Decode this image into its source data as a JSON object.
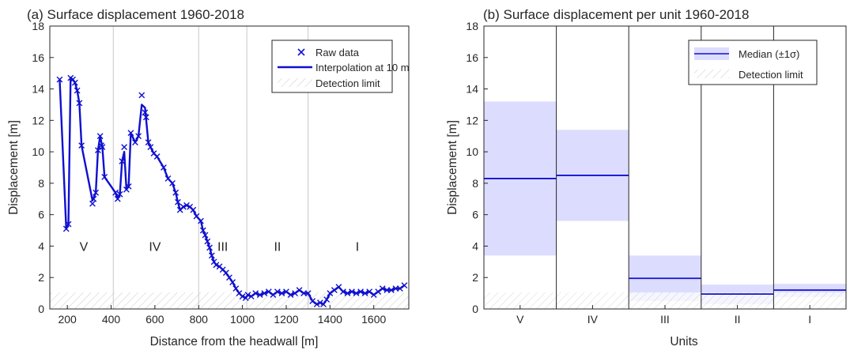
{
  "charts": {
    "a": {
      "chart_data": {
        "type": "line",
        "title": "(a) Surface displacement 1960-2018",
        "xlabel": "Distance from the headwall [m]",
        "ylabel": "Displacement [m]",
        "xlim": [
          120,
          1760
        ],
        "ylim": [
          0,
          18
        ],
        "xticks": [
          200,
          400,
          600,
          800,
          1000,
          1200,
          1400,
          1600
        ],
        "yticks": [
          0,
          2,
          4,
          6,
          8,
          10,
          12,
          14,
          16,
          18
        ],
        "unit_boundaries": [
          410,
          800,
          1020,
          1300
        ],
        "detection_limit": 1.05,
        "units": [
          {
            "label": "V",
            "x": 275,
            "y": 4
          },
          {
            "label": "IV",
            "x": 600,
            "y": 4
          },
          {
            "label": "III",
            "x": 910,
            "y": 4
          },
          {
            "label": "II",
            "x": 1160,
            "y": 4
          },
          {
            "label": "I",
            "x": 1525,
            "y": 4
          }
        ],
        "legend": {
          "position": "top-right",
          "entries": [
            "Raw data",
            "Interpolation at 10 m",
            "Detection limit"
          ]
        },
        "series": [
          {
            "name": "Raw data",
            "marker": "x",
            "points": [
              [
                165,
                14.6
              ],
              [
                195,
                5.1
              ],
              [
                205,
                5.4
              ],
              [
                215,
                14.7
              ],
              [
                225,
                14.6
              ],
              [
                235,
                14.4
              ],
              [
                245,
                13.9
              ],
              [
                255,
                13.1
              ],
              [
                265,
                10.4
              ],
              [
                315,
                6.7
              ],
              [
                320,
                7.0
              ],
              [
                330,
                7.4
              ],
              [
                340,
                10.1
              ],
              [
                350,
                11.0
              ],
              [
                355,
                10.4
              ],
              [
                360,
                10.3
              ],
              [
                370,
                8.4
              ],
              [
                420,
                7.4
              ],
              [
                430,
                7.0
              ],
              [
                440,
                7.3
              ],
              [
                450,
                9.4
              ],
              [
                460,
                10.3
              ],
              [
                470,
                7.6
              ],
              [
                480,
                7.8
              ],
              [
                490,
                11.2
              ],
              [
                510,
                10.6
              ],
              [
                525,
                11.0
              ],
              [
                540,
                13.6
              ],
              [
                555,
                12.5
              ],
              [
                560,
                12.2
              ],
              [
                570,
                10.6
              ],
              [
                580,
                10.3
              ],
              [
                595,
                9.9
              ],
              [
                610,
                9.7
              ],
              [
                640,
                9.0
              ],
              [
                660,
                8.3
              ],
              [
                680,
                8.0
              ],
              [
                695,
                7.4
              ],
              [
                705,
                6.8
              ],
              [
                715,
                6.3
              ],
              [
                730,
                6.5
              ],
              [
                745,
                6.6
              ],
              [
                760,
                6.5
              ],
              [
                775,
                6.3
              ],
              [
                790,
                5.9
              ],
              [
                810,
                5.6
              ],
              [
                820,
                5.0
              ],
              [
                830,
                4.7
              ],
              [
                840,
                4.3
              ],
              [
                850,
                3.9
              ],
              [
                860,
                3.4
              ],
              [
                870,
                3.0
              ],
              [
                880,
                2.8
              ],
              [
                895,
                2.7
              ],
              [
                910,
                2.5
              ],
              [
                925,
                2.3
              ],
              [
                940,
                2.0
              ],
              [
                955,
                1.7
              ],
              [
                970,
                1.3
              ],
              [
                985,
                1.0
              ],
              [
                1000,
                0.8
              ],
              [
                1015,
                0.7
              ],
              [
                1025,
                0.9
              ],
              [
                1040,
                0.8
              ],
              [
                1060,
                1.0
              ],
              [
                1080,
                0.9
              ],
              [
                1100,
                1.0
              ],
              [
                1120,
                1.1
              ],
              [
                1140,
                0.9
              ],
              [
                1160,
                1.1
              ],
              [
                1180,
                1.0
              ],
              [
                1200,
                1.1
              ],
              [
                1220,
                0.9
              ],
              [
                1240,
                1.0
              ],
              [
                1260,
                1.2
              ],
              [
                1280,
                1.0
              ],
              [
                1300,
                1.0
              ],
              [
                1320,
                0.5
              ],
              [
                1340,
                0.3
              ],
              [
                1355,
                0.4
              ],
              [
                1370,
                0.3
              ],
              [
                1385,
                0.6
              ],
              [
                1400,
                1.0
              ],
              [
                1420,
                1.2
              ],
              [
                1440,
                1.4
              ],
              [
                1460,
                1.1
              ],
              [
                1480,
                1.0
              ],
              [
                1500,
                1.1
              ],
              [
                1520,
                1.0
              ],
              [
                1540,
                1.1
              ],
              [
                1560,
                1.0
              ],
              [
                1580,
                1.1
              ],
              [
                1600,
                0.9
              ],
              [
                1620,
                1.1
              ],
              [
                1640,
                1.3
              ],
              [
                1660,
                1.2
              ],
              [
                1680,
                1.2
              ],
              [
                1700,
                1.3
              ],
              [
                1720,
                1.3
              ],
              [
                1740,
                1.5
              ]
            ]
          },
          {
            "name": "Interpolation at 10 m",
            "marker": "line",
            "points": [
              [
                165,
                14.6
              ],
              [
                195,
                5.1
              ],
              [
                205,
                5.4
              ],
              [
                215,
                14.7
              ],
              [
                225,
                14.6
              ],
              [
                235,
                14.4
              ],
              [
                245,
                13.9
              ],
              [
                255,
                13.1
              ],
              [
                265,
                10.4
              ],
              [
                315,
                6.9
              ],
              [
                330,
                7.4
              ],
              [
                340,
                10.1
              ],
              [
                350,
                11.0
              ],
              [
                360,
                10.3
              ],
              [
                370,
                8.4
              ],
              [
                420,
                7.4
              ],
              [
                430,
                7.0
              ],
              [
                440,
                7.3
              ],
              [
                450,
                9.4
              ],
              [
                460,
                10.0
              ],
              [
                470,
                7.6
              ],
              [
                480,
                7.8
              ],
              [
                490,
                11.2
              ],
              [
                510,
                10.6
              ],
              [
                525,
                11.0
              ],
              [
                540,
                13.0
              ],
              [
                555,
                12.8
              ],
              [
                570,
                10.6
              ],
              [
                580,
                10.3
              ],
              [
                595,
                9.9
              ],
              [
                610,
                9.7
              ],
              [
                640,
                9.0
              ],
              [
                660,
                8.3
              ],
              [
                680,
                8.0
              ],
              [
                695,
                7.4
              ],
              [
                705,
                6.8
              ],
              [
                715,
                6.3
              ],
              [
                730,
                6.5
              ],
              [
                745,
                6.6
              ],
              [
                760,
                6.5
              ],
              [
                775,
                6.3
              ],
              [
                790,
                5.9
              ],
              [
                810,
                5.6
              ],
              [
                820,
                5.0
              ],
              [
                830,
                4.7
              ],
              [
                840,
                4.3
              ],
              [
                850,
                3.9
              ],
              [
                860,
                3.4
              ],
              [
                870,
                3.0
              ],
              [
                880,
                2.8
              ],
              [
                895,
                2.7
              ],
              [
                910,
                2.5
              ],
              [
                925,
                2.3
              ],
              [
                940,
                2.0
              ],
              [
                955,
                1.7
              ],
              [
                970,
                1.3
              ],
              [
                985,
                1.0
              ],
              [
                1000,
                0.8
              ],
              [
                1015,
                0.7
              ],
              [
                1025,
                0.9
              ],
              [
                1040,
                0.8
              ],
              [
                1060,
                1.0
              ],
              [
                1080,
                0.9
              ],
              [
                1100,
                1.0
              ],
              [
                1120,
                1.1
              ],
              [
                1140,
                0.9
              ],
              [
                1160,
                1.1
              ],
              [
                1180,
                1.0
              ],
              [
                1200,
                1.1
              ],
              [
                1220,
                0.9
              ],
              [
                1240,
                1.0
              ],
              [
                1260,
                1.2
              ],
              [
                1280,
                1.0
              ],
              [
                1300,
                1.0
              ],
              [
                1320,
                0.5
              ],
              [
                1340,
                0.3
              ],
              [
                1355,
                0.4
              ],
              [
                1370,
                0.3
              ],
              [
                1385,
                0.6
              ],
              [
                1400,
                1.0
              ],
              [
                1420,
                1.2
              ],
              [
                1440,
                1.4
              ],
              [
                1460,
                1.1
              ],
              [
                1480,
                1.0
              ],
              [
                1500,
                1.1
              ],
              [
                1520,
                1.0
              ],
              [
                1540,
                1.1
              ],
              [
                1560,
                1.0
              ],
              [
                1580,
                1.1
              ],
              [
                1600,
                0.9
              ],
              [
                1620,
                1.1
              ],
              [
                1640,
                1.3
              ],
              [
                1660,
                1.2
              ],
              [
                1680,
                1.2
              ],
              [
                1700,
                1.3
              ],
              [
                1720,
                1.3
              ],
              [
                1740,
                1.5
              ]
            ]
          }
        ]
      }
    },
    "b": {
      "chart_data": {
        "type": "bar",
        "title": "(b) Surface displacement per unit 1960-2018",
        "xlabel": "Units",
        "ylabel": "Displacement [m]",
        "ylim": [
          0,
          18
        ],
        "yticks": [
          0,
          2,
          4,
          6,
          8,
          10,
          12,
          14,
          16,
          18
        ],
        "categories": [
          "V",
          "IV",
          "III",
          "II",
          "I"
        ],
        "detection_limit": 1.05,
        "legend": {
          "position": "top-right",
          "entries": [
            "Median (±1σ)",
            "Detection limit"
          ]
        },
        "series": [
          {
            "name": "Median (±1σ)",
            "median": [
              8.3,
              8.5,
              1.95,
              0.95,
              1.2
            ],
            "lower": [
              3.4,
              5.6,
              0.5,
              0.3,
              0.75
            ],
            "upper": [
              13.2,
              11.4,
              3.4,
              1.55,
              1.6
            ]
          }
        ]
      }
    }
  },
  "colors": {
    "series": "#1010d0",
    "band": "#dcdcff",
    "hatch": "#cfcfcf",
    "axis": "#262626",
    "grid": "#c8c8c8"
  }
}
